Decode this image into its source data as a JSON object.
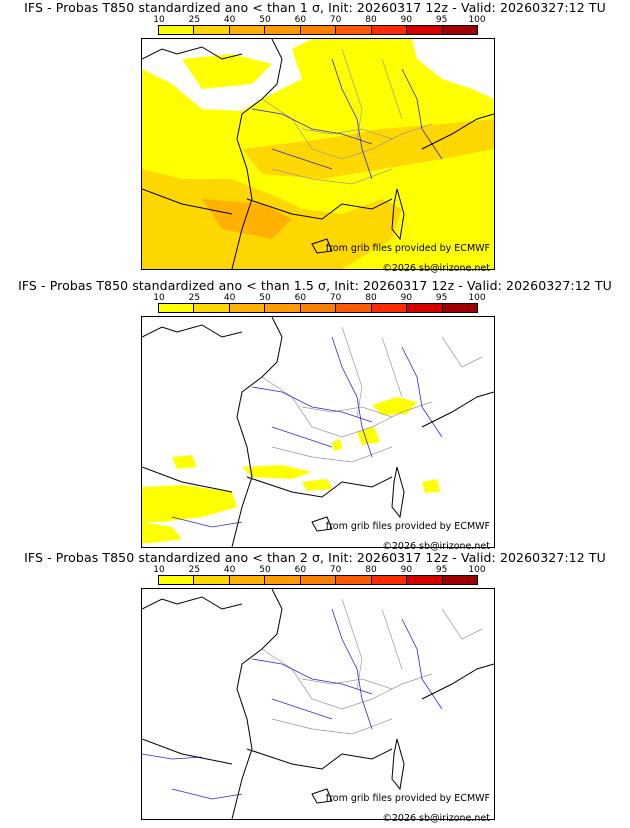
{
  "panels": [
    {
      "title": "IFS - Probas T850  standardized ano < than 1 σ, Init: 20260317 12z - Valid: 20260327:12 TU",
      "credit": "from grib files provided by ECMWF",
      "copyright": "©2026 sb@irizone.net"
    },
    {
      "title": "IFS - Probas T850  standardized ano < than 1.5 σ, Init: 20260317 12z - Valid: 20260327:12 TU",
      "credit": "from grib files provided by ECMWF",
      "copyright": "©2026 sb@irizone.net"
    },
    {
      "title": "IFS - Probas T850  standardized ano < than 2 σ, Init: 20260317 12z - Valid: 20260327:12 TU",
      "credit": "from grib files provided by ECMWF",
      "copyright": "©2026 sb@irizone.net"
    }
  ],
  "colorbar": {
    "ticks": [
      "10",
      "25",
      "40",
      "50",
      "60",
      "70",
      "80",
      "90",
      "95",
      "100"
    ],
    "colors": [
      "#ffff00",
      "#ffd700",
      "#ffb000",
      "#ff9a00",
      "#ff7f00",
      "#ff5a00",
      "#ff2a00",
      "#d40000",
      "#a00000"
    ]
  },
  "colors": {
    "coast": "#000000",
    "rivers": "#2b2bd4",
    "borders": "#9a9a9a",
    "field_low": "#ffff00",
    "field_mid": "#ffd700",
    "field_high": "#ffb000"
  }
}
